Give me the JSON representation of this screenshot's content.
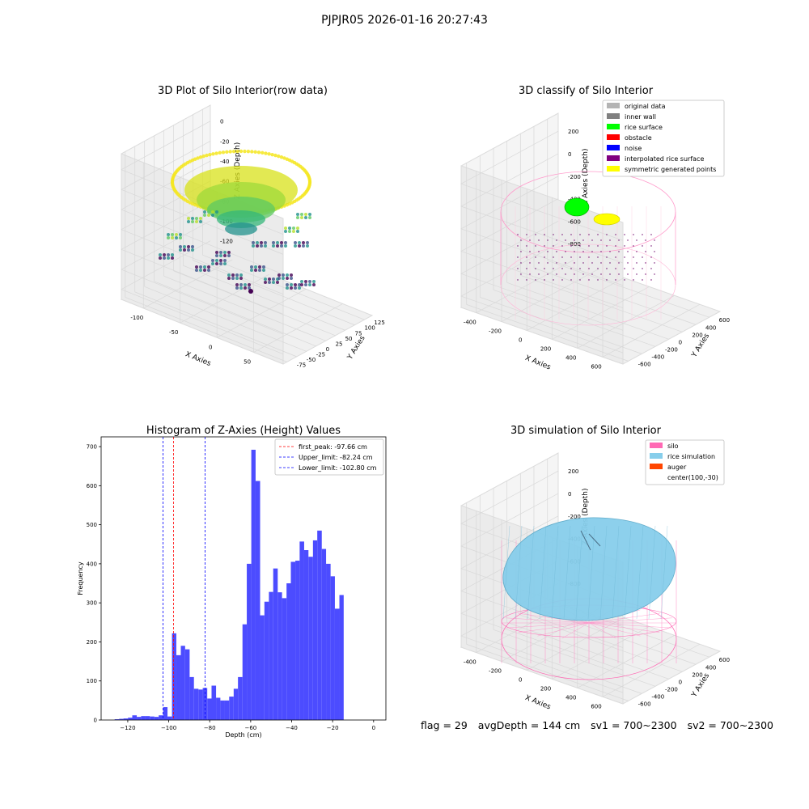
{
  "suptitle": "PJPJR05 2026-01-16 20:27:43",
  "footer": {
    "flag": "flag = 29",
    "avg_depth": "avgDepth = 144 cm",
    "sv1": "sv1 = 700~2300",
    "sv2": "sv2 = 700~2300"
  },
  "chart_data": [
    {
      "type": "scatter",
      "title": "3D Plot of Silo Interior(row data)",
      "xlabel": "X Axies",
      "ylabel": "Y Axies",
      "zlabel": "Z Axies (Depth)",
      "x_ticks": [
        "-100",
        "-50",
        "0",
        "50"
      ],
      "y_ticks": [
        "-75",
        "-50",
        "-25",
        "0",
        "25",
        "50",
        "75",
        "100",
        "125"
      ],
      "z_ticks": [
        "-120",
        "-100",
        "-80",
        "-60",
        "-40",
        "-20",
        "0"
      ],
      "colormap": "viridis",
      "zlim": [
        -128,
        5
      ]
    },
    {
      "type": "scatter",
      "title": "3D classify of Silo Interior",
      "xlabel": "X Axies",
      "ylabel": "Y Axies",
      "zlabel": "Z Axies (Depth)",
      "x_ticks": [
        "-400",
        "-200",
        "0",
        "200",
        "400",
        "600"
      ],
      "y_ticks": [
        "-600",
        "-400",
        "-200",
        "0",
        "200",
        "400",
        "600"
      ],
      "z_ticks": [
        "-800",
        "-600",
        "-400",
        "-200",
        "0",
        "200"
      ],
      "legend_position": "top-right",
      "legend": [
        {
          "label": "original data",
          "color": "#b4b4b4"
        },
        {
          "label": "inner wall",
          "color": "#808080"
        },
        {
          "label": "rice surface",
          "color": "#00ff00"
        },
        {
          "label": "obstacle",
          "color": "#ff0000"
        },
        {
          "label": "noise",
          "color": "#0000ff"
        },
        {
          "label": "interpolated rice surface",
          "color": "#800080"
        },
        {
          "label": "symmetric generated points",
          "color": "#ffff00"
        }
      ]
    },
    {
      "type": "bar",
      "title": "Histogram of Z-Axies (Height) Values",
      "xlabel": "Depth (cm)",
      "ylabel": "Frequency",
      "xlim": [
        -133,
        6
      ],
      "ylim": [
        0,
        725
      ],
      "x_ticks": [
        -120,
        -100,
        -80,
        -60,
        -40,
        -20,
        0
      ],
      "y_ticks": [
        0,
        100,
        200,
        300,
        400,
        500,
        600,
        700
      ],
      "bar_color": "#4c4cff",
      "bins": [
        {
          "x0": -126.4,
          "x1": -124.2,
          "value": 2
        },
        {
          "x0": -124.2,
          "x1": -122.1,
          "value": 3
        },
        {
          "x0": -122.1,
          "x1": -119.9,
          "value": 4
        },
        {
          "x0": -119.9,
          "x1": -117.8,
          "value": 6
        },
        {
          "x0": -117.8,
          "x1": -115.6,
          "value": 12
        },
        {
          "x0": -115.6,
          "x1": -113.5,
          "value": 8
        },
        {
          "x0": -113.5,
          "x1": -111.3,
          "value": 10
        },
        {
          "x0": -111.3,
          "x1": -109.2,
          "value": 10
        },
        {
          "x0": -109.2,
          "x1": -107.0,
          "value": 9
        },
        {
          "x0": -107.0,
          "x1": -104.9,
          "value": 8
        },
        {
          "x0": -104.9,
          "x1": -102.7,
          "value": 12
        },
        {
          "x0": -102.7,
          "x1": -100.6,
          "value": 33
        },
        {
          "x0": -100.6,
          "x1": -98.4,
          "value": 9
        },
        {
          "x0": -98.4,
          "x1": -96.3,
          "value": 222
        },
        {
          "x0": -96.3,
          "x1": -94.1,
          "value": 166
        },
        {
          "x0": -94.1,
          "x1": -92.0,
          "value": 190
        },
        {
          "x0": -92.0,
          "x1": -89.8,
          "value": 181
        },
        {
          "x0": -89.8,
          "x1": -87.7,
          "value": 110
        },
        {
          "x0": -87.7,
          "x1": -85.5,
          "value": 80
        },
        {
          "x0": -85.5,
          "x1": -83.4,
          "value": 78
        },
        {
          "x0": -83.4,
          "x1": -81.2,
          "value": 82
        },
        {
          "x0": -81.2,
          "x1": -79.1,
          "value": 55
        },
        {
          "x0": -79.1,
          "x1": -76.9,
          "value": 88
        },
        {
          "x0": -76.9,
          "x1": -74.8,
          "value": 57
        },
        {
          "x0": -74.8,
          "x1": -72.6,
          "value": 50
        },
        {
          "x0": -72.6,
          "x1": -70.5,
          "value": 50
        },
        {
          "x0": -70.5,
          "x1": -68.3,
          "value": 60
        },
        {
          "x0": -68.3,
          "x1": -66.2,
          "value": 80
        },
        {
          "x0": -66.2,
          "x1": -64.0,
          "value": 110
        },
        {
          "x0": -64.0,
          "x1": -61.9,
          "value": 245
        },
        {
          "x0": -61.9,
          "x1": -59.7,
          "value": 400
        },
        {
          "x0": -59.7,
          "x1": -57.6,
          "value": 692
        },
        {
          "x0": -57.6,
          "x1": -55.4,
          "value": 612
        },
        {
          "x0": -55.4,
          "x1": -53.3,
          "value": 268
        },
        {
          "x0": -53.3,
          "x1": -51.1,
          "value": 303
        },
        {
          "x0": -51.1,
          "x1": -49.0,
          "value": 328
        },
        {
          "x0": -49.0,
          "x1": -46.8,
          "value": 388
        },
        {
          "x0": -46.8,
          "x1": -44.7,
          "value": 327
        },
        {
          "x0": -44.7,
          "x1": -42.5,
          "value": 312
        },
        {
          "x0": -42.5,
          "x1": -40.4,
          "value": 350
        },
        {
          "x0": -40.4,
          "x1": -38.2,
          "value": 405
        },
        {
          "x0": -38.2,
          "x1": -36.1,
          "value": 408
        },
        {
          "x0": -36.1,
          "x1": -33.9,
          "value": 457
        },
        {
          "x0": -33.9,
          "x1": -31.8,
          "value": 435
        },
        {
          "x0": -31.8,
          "x1": -29.6,
          "value": 418
        },
        {
          "x0": -29.6,
          "x1": -27.5,
          "value": 460
        },
        {
          "x0": -27.5,
          "x1": -25.3,
          "value": 485
        },
        {
          "x0": -25.3,
          "x1": -23.2,
          "value": 438
        },
        {
          "x0": -23.2,
          "x1": -21.0,
          "value": 400
        },
        {
          "x0": -21.0,
          "x1": -18.9,
          "value": 368
        },
        {
          "x0": -18.9,
          "x1": -16.7,
          "value": 285
        },
        {
          "x0": -16.7,
          "x1": -14.6,
          "value": 320
        }
      ],
      "vlines": [
        {
          "x": -97.66,
          "color": "#ff0000",
          "label": "first_peak: -97.66 cm"
        },
        {
          "x": -82.24,
          "color": "#0000ff",
          "label": "Upper_limit: -82.24 cm"
        },
        {
          "x": -102.8,
          "color": "#0000ff",
          "label": "Lower_limit: -102.80 cm"
        }
      ],
      "legend_position": "top-right"
    },
    {
      "type": "scatter",
      "title": "3D simulation of Silo Interior",
      "xlabel": "X Axies",
      "ylabel": "Y Axies",
      "zlabel": "Z Axies (Depth)",
      "x_ticks": [
        "-400",
        "-200",
        "0",
        "200",
        "400",
        "600"
      ],
      "y_ticks": [
        "-600",
        "-400",
        "-200",
        "0",
        "200",
        "400",
        "600"
      ],
      "z_ticks": [
        "-800",
        "-600",
        "-400",
        "-200",
        "0",
        "200"
      ],
      "legend_position": "top-right",
      "legend": [
        {
          "label": "silo",
          "color": "#ff69b4"
        },
        {
          "label": "rice simulation",
          "color": "#87ceeb"
        },
        {
          "label": "auger",
          "color": "#ff4500"
        },
        {
          "label": "center(100,-30)",
          "color": ""
        }
      ]
    }
  ]
}
